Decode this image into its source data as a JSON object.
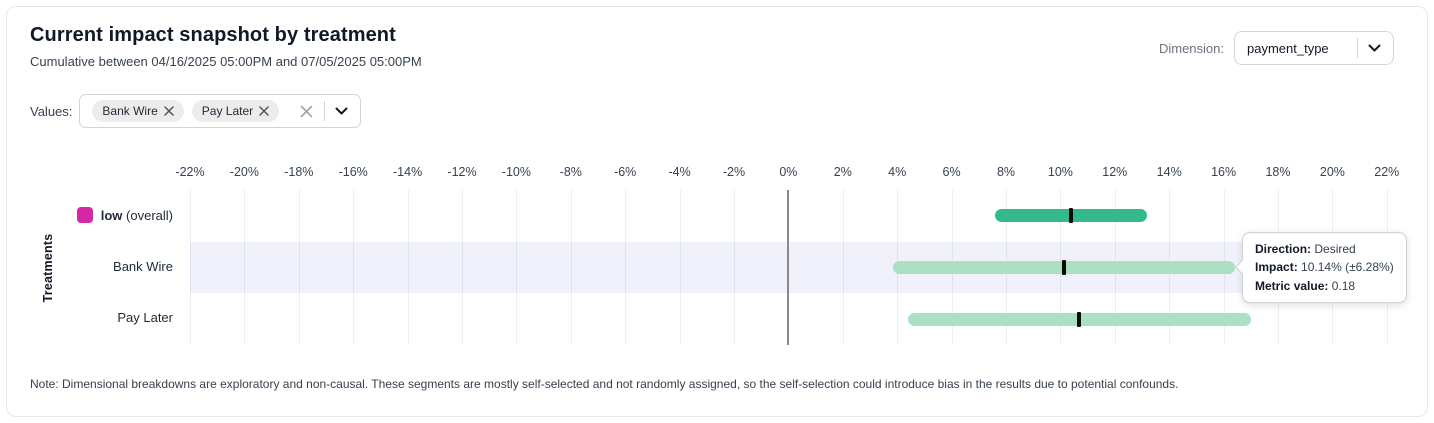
{
  "header": {
    "title": "Current impact snapshot by treatment",
    "subtitle": "Cumulative between 04/16/2025 05:00PM and 07/05/2025 05:00PM",
    "dimension_label": "Dimension:",
    "dimension_value": "payment_type"
  },
  "values_filter": {
    "label": "Values:",
    "chips": [
      {
        "label": "Bank Wire"
      },
      {
        "label": "Pay Later"
      }
    ]
  },
  "icons": {
    "chip_remove": "close-x",
    "clear_all": "close-x",
    "dropdown": "chevron-down"
  },
  "chart_data": {
    "type": "bar",
    "orientation": "horizontal",
    "representation": "impact confidence intervals with point estimate tick",
    "title": "Current impact snapshot by treatment",
    "xlabel": "",
    "ylabel": "Treatments",
    "axis": {
      "min": -22,
      "max": 22,
      "step": 2,
      "unit": "%"
    },
    "grid": true,
    "categories": [
      "low (overall)",
      "Bank Wire",
      "Pay Later"
    ],
    "rows": [
      {
        "label": "low",
        "suffix": " (overall)",
        "impact_pct": 10.4,
        "margin_pct": 2.8,
        "bar_color": "#34b98c",
        "tick_color": "#0c0c0c",
        "swatch_color": "#d428a5",
        "highlighted": false
      },
      {
        "label": "Bank Wire",
        "suffix": "",
        "impact_pct": 10.14,
        "margin_pct": 6.28,
        "bar_color": "#abe0c3",
        "tick_color": "#0c0c0c",
        "highlighted": true
      },
      {
        "label": "Pay Later",
        "suffix": "",
        "impact_pct": 10.7,
        "margin_pct": 6.3,
        "bar_color": "#abe0c3",
        "tick_color": "#0c0c0c",
        "highlighted": false
      }
    ],
    "tooltip": {
      "row_index": 1,
      "direction_label": "Direction:",
      "direction_value": "Desired",
      "impact_label": "Impact:",
      "impact_value": "10.14% (±6.28%)",
      "metric_label": "Metric value:",
      "metric_value": "0.18"
    }
  },
  "colors": {
    "overall_bar": "#34b98c",
    "segment_bar": "#abe0c3",
    "legend_swatch": "#d428a5",
    "row_highlight": "#f0f1fa",
    "zero_line": "#8a8a8a",
    "card_border": "#e5e7eb"
  },
  "note": "Note: Dimensional breakdowns are exploratory and non-causal. These segments are mostly self-selected and not randomly assigned, so the self-selection could introduce bias in the results due to potential confounds."
}
